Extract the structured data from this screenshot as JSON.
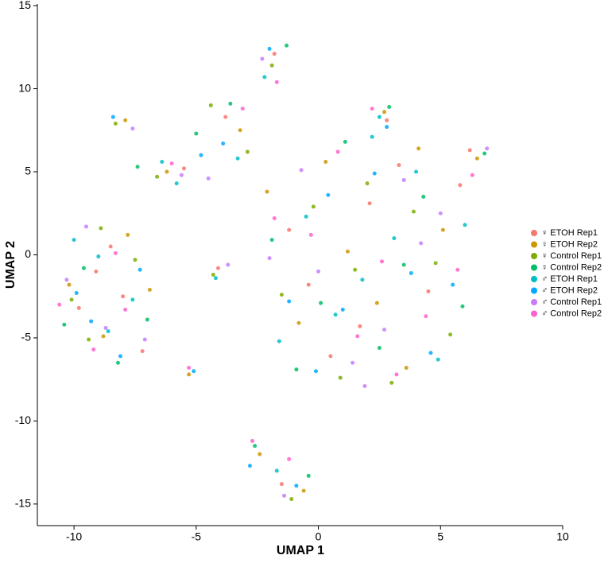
{
  "chart_data": {
    "type": "scatter",
    "x_label": "UMAP 1",
    "y_label": "UMAP 2",
    "xlim": [
      -11.5,
      10
    ],
    "ylim": [
      -16.3,
      15.1
    ],
    "xticks": [
      -10,
      -5,
      0,
      5,
      10
    ],
    "yticks": [
      -15,
      -10,
      -5,
      0,
      5,
      10,
      15
    ],
    "series": [
      {
        "name": "♀ ETOH Rep1",
        "color": "#F8766D",
        "x": [
          -9.8,
          -8.5,
          -7.2,
          -9.1,
          -8,
          2.1,
          4.5,
          0.5,
          -1.2,
          3.3,
          5.8,
          1.7,
          -0.4,
          2.8,
          -5.5,
          -3.8,
          -1.8,
          -1.5,
          -4.1,
          6.2
        ],
        "y": [
          -3.2,
          0.5,
          -5.8,
          -1,
          -2.5,
          3.1,
          -2.2,
          -6.1,
          1.5,
          5.4,
          4.2,
          -4.3,
          -1.8,
          8.1,
          5.2,
          8.3,
          12.1,
          -13.8,
          -0.8,
          6.3
        ]
      },
      {
        "name": "♀ ETOH Rep2",
        "color": "#CD9600",
        "x": [
          -10.2,
          -8.8,
          -6.9,
          -7.8,
          3.6,
          1.2,
          -0.8,
          5.1,
          2.4,
          -2.1,
          0.3,
          4.1,
          -6.2,
          -3.2,
          -2.4,
          -0.6,
          -7.9,
          2.7,
          6.5,
          -5.3
        ],
        "y": [
          -1.8,
          -4.9,
          -2.1,
          1.2,
          -6.8,
          0.2,
          -4.1,
          1.5,
          -2.9,
          3.8,
          5.6,
          6.4,
          5,
          7.5,
          -12,
          -14.2,
          8.1,
          8.6,
          5.8,
          -7.2
        ]
      },
      {
        "name": "♀ Control Rep1",
        "color": "#7CAE00",
        "x": [
          -9.4,
          -7.5,
          -8.9,
          -10.1,
          0.9,
          3.9,
          -1.5,
          2,
          5.4,
          -0.2,
          1.5,
          3,
          -4.4,
          -2.9,
          -1.9,
          -1.1,
          -8.3,
          -6.6,
          4.8,
          -4.3
        ],
        "y": [
          -5.1,
          -0.3,
          1.6,
          -2.7,
          -7.4,
          2.6,
          -2.4,
          4.3,
          -4.8,
          2.9,
          -0.9,
          -7.7,
          9,
          6.2,
          11.4,
          -14.7,
          7.9,
          4.7,
          -0.5,
          -1.2
        ]
      },
      {
        "name": "♀ Control Rep2",
        "color": "#00BE67",
        "x": [
          -8.2,
          -9.6,
          -7,
          -10.4,
          2.5,
          -1.9,
          4.3,
          0.1,
          5.9,
          1.1,
          3.5,
          -0.9,
          -5,
          -3.6,
          -1.3,
          -2.6,
          2.9,
          -7.4,
          6.8,
          -0.4
        ],
        "y": [
          -6.5,
          -0.8,
          -3.9,
          -4.2,
          -5.6,
          0.9,
          3.5,
          -2.9,
          -3.1,
          6.8,
          -0.6,
          -6.9,
          7.3,
          9.1,
          12.6,
          -11.5,
          8.9,
          5.3,
          6.1,
          -13.3
        ]
      },
      {
        "name": "♂ ETOH Rep1",
        "color": "#00BFC4",
        "x": [
          -9,
          -7.6,
          -8.6,
          -10,
          1.8,
          -1.6,
          4.9,
          -0.5,
          3.1,
          0.7,
          6,
          2.2,
          -5.8,
          -3.3,
          -2.2,
          -1.7,
          -4.2,
          2.5,
          -6.4,
          4
        ],
        "y": [
          -0.1,
          -2.7,
          -4.6,
          0.9,
          -1.5,
          -5.2,
          -6.3,
          2.3,
          1,
          -3.6,
          1.8,
          7.1,
          4.3,
          5.8,
          10.7,
          -13,
          -1.4,
          8.3,
          5.6,
          5
        ]
      },
      {
        "name": "♂ ETOH Rep2",
        "color": "#00A9FF",
        "x": [
          -9.9,
          -8.1,
          -7.3,
          -9.3,
          1,
          3.8,
          -0.1,
          5.5,
          2.3,
          -1.2,
          4.6,
          0.4,
          -3.9,
          -4.8,
          -2,
          -0.9,
          -2.8,
          2.8,
          -8.4,
          -5.1
        ],
        "y": [
          -2.3,
          -6.1,
          -0.9,
          -4,
          -3.3,
          -1.1,
          -7,
          -1.8,
          4.9,
          -2.8,
          -5.9,
          3.6,
          6.7,
          6,
          12.4,
          -13.9,
          -12.7,
          7.7,
          8.3,
          -7
        ]
      },
      {
        "name": "♂ Control Rep1",
        "color": "#C77CFF",
        "x": [
          -8.7,
          -10.3,
          -7.1,
          -9.5,
          2.7,
          0,
          4.2,
          -2,
          5,
          1.4,
          3.5,
          -0.7,
          -5.6,
          -4.5,
          -2.3,
          -1.4,
          -7.6,
          6.9,
          -3.7,
          1.9
        ],
        "y": [
          -4.4,
          -1.5,
          -5.1,
          1.7,
          -4.5,
          -1,
          0.7,
          -0.2,
          2.5,
          -6.5,
          4.5,
          5.1,
          4.8,
          4.6,
          11.8,
          -14.5,
          7.6,
          6.4,
          -0.6,
          -7.9
        ]
      },
      {
        "name": "♂ Control Rep2",
        "color": "#FF61CC",
        "x": [
          -9.2,
          -7.9,
          -10.6,
          -8.3,
          1.6,
          4.4,
          -0.3,
          2.6,
          5.7,
          -1.8,
          3.2,
          0.8,
          -6,
          -3.1,
          -1.7,
          -1.2,
          -5.3,
          2.2,
          -2.7,
          6.3
        ],
        "y": [
          -5.7,
          -3.3,
          -3,
          0.1,
          -4.9,
          -3.7,
          1.2,
          -0.4,
          -0.9,
          2.2,
          -7.2,
          6.2,
          5.5,
          8.8,
          10.4,
          -12.3,
          -6.8,
          8.8,
          -11.2,
          4.8
        ]
      }
    ]
  }
}
